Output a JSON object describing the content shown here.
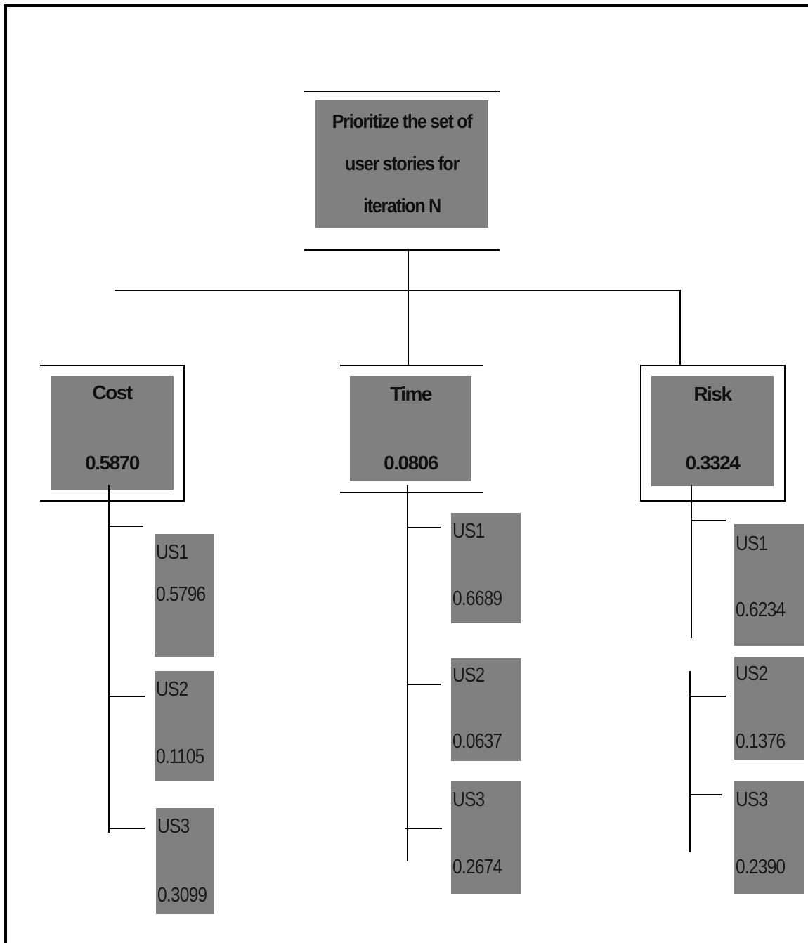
{
  "root": {
    "lines": [
      "Prioritize the set of",
      "user stories for",
      "iteration N"
    ]
  },
  "criteria": [
    {
      "name": "Cost",
      "value": "0.5870",
      "stories": [
        {
          "label": "US1",
          "value": "0.5796"
        },
        {
          "label": "US2",
          "value": "0.1105"
        },
        {
          "label": "US3",
          "value": "0.3099"
        }
      ]
    },
    {
      "name": "Time",
      "value": "0.0806",
      "stories": [
        {
          "label": "US1",
          "value": "0.6689"
        },
        {
          "label": "US2",
          "value": "0.0637"
        },
        {
          "label": "US3",
          "value": "0.2674"
        }
      ]
    },
    {
      "name": "Risk",
      "value": "0.3324",
      "stories": [
        {
          "label": "US1",
          "value": "0.6234"
        },
        {
          "label": "US2",
          "value": "0.1376"
        },
        {
          "label": "US3",
          "value": "0.2390"
        }
      ]
    }
  ],
  "colors": {
    "box_fill": "#808080",
    "line": "#000000",
    "background": "#ffffff"
  }
}
